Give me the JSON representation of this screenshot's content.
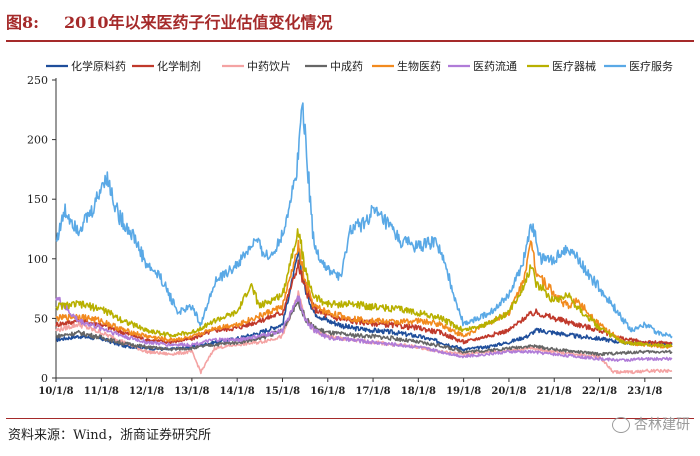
{
  "figure": {
    "label": "图8:",
    "title": "2010年以来医药子行业估值变化情况",
    "source": "资料来源：Wind，浙商证券研究所",
    "watermark": "杏林建研"
  },
  "chart_data": {
    "type": "line",
    "title": "2010年以来医药子行业估值变化情况",
    "xlabel": "",
    "ylabel": "",
    "ylim": [
      0,
      250
    ],
    "yticks": [
      0,
      50,
      100,
      150,
      200,
      250
    ],
    "xticks": [
      "10/1/8",
      "11/1/8",
      "12/1/8",
      "13/1/8",
      "14/1/8",
      "15/1/8",
      "16/1/8",
      "17/1/8",
      "18/1/8",
      "19/1/8",
      "20/1/8",
      "21/1/8",
      "22/1/8",
      "23/1/8"
    ],
    "x_range": [
      2010.0,
      2023.6
    ],
    "legend_position": "top",
    "series": [
      {
        "name": "化学原料药",
        "color": "#1f4e9b",
        "points": [
          [
            2010.0,
            32
          ],
          [
            2010.5,
            35
          ],
          [
            2011.0,
            33
          ],
          [
            2011.5,
            27
          ],
          [
            2012.0,
            25
          ],
          [
            2012.5,
            24
          ],
          [
            2013.0,
            26
          ],
          [
            2013.5,
            30
          ],
          [
            2014.0,
            33
          ],
          [
            2014.5,
            38
          ],
          [
            2015.0,
            45
          ],
          [
            2015.35,
            105
          ],
          [
            2015.5,
            75
          ],
          [
            2015.7,
            55
          ],
          [
            2016.0,
            48
          ],
          [
            2016.5,
            42
          ],
          [
            2017.0,
            40
          ],
          [
            2017.5,
            38
          ],
          [
            2018.0,
            35
          ],
          [
            2018.5,
            30
          ],
          [
            2019.0,
            24
          ],
          [
            2019.5,
            26
          ],
          [
            2020.0,
            30
          ],
          [
            2020.4,
            35
          ],
          [
            2020.6,
            40
          ],
          [
            2021.0,
            38
          ],
          [
            2021.5,
            35
          ],
          [
            2022.0,
            33
          ],
          [
            2022.5,
            30
          ],
          [
            2023.0,
            29
          ],
          [
            2023.6,
            28
          ]
        ]
      },
      {
        "name": "化学制剂",
        "color": "#c0392b",
        "points": [
          [
            2010.0,
            45
          ],
          [
            2010.5,
            48
          ],
          [
            2011.0,
            45
          ],
          [
            2011.5,
            38
          ],
          [
            2012.0,
            32
          ],
          [
            2012.5,
            30
          ],
          [
            2013.0,
            33
          ],
          [
            2013.5,
            40
          ],
          [
            2014.0,
            42
          ],
          [
            2014.5,
            48
          ],
          [
            2015.0,
            55
          ],
          [
            2015.35,
            95
          ],
          [
            2015.5,
            75
          ],
          [
            2015.7,
            58
          ],
          [
            2016.0,
            52
          ],
          [
            2016.5,
            48
          ],
          [
            2017.0,
            46
          ],
          [
            2017.5,
            44
          ],
          [
            2018.0,
            42
          ],
          [
            2018.5,
            38
          ],
          [
            2019.0,
            30
          ],
          [
            2019.5,
            35
          ],
          [
            2020.0,
            40
          ],
          [
            2020.4,
            52
          ],
          [
            2020.6,
            55
          ],
          [
            2021.0,
            50
          ],
          [
            2021.5,
            45
          ],
          [
            2022.0,
            40
          ],
          [
            2022.5,
            33
          ],
          [
            2023.0,
            30
          ],
          [
            2023.6,
            29
          ]
        ]
      },
      {
        "name": "中药饮片",
        "color": "#f4a3a3",
        "points": [
          [
            2010.0,
            40
          ],
          [
            2010.5,
            45
          ],
          [
            2011.0,
            38
          ],
          [
            2011.5,
            30
          ],
          [
            2012.0,
            22
          ],
          [
            2012.5,
            20
          ],
          [
            2013.0,
            22
          ],
          [
            2013.2,
            5
          ],
          [
            2013.5,
            25
          ],
          [
            2014.0,
            28
          ],
          [
            2014.5,
            30
          ],
          [
            2015.0,
            35
          ],
          [
            2015.35,
            70
          ],
          [
            2015.5,
            50
          ],
          [
            2015.7,
            40
          ],
          [
            2016.0,
            35
          ],
          [
            2016.5,
            32
          ],
          [
            2017.0,
            30
          ],
          [
            2017.5,
            28
          ],
          [
            2018.0,
            26
          ],
          [
            2018.5,
            22
          ],
          [
            2019.0,
            20
          ],
          [
            2019.5,
            22
          ],
          [
            2020.0,
            23
          ],
          [
            2020.5,
            25
          ],
          [
            2021.0,
            22
          ],
          [
            2021.5,
            20
          ],
          [
            2022.0,
            18
          ],
          [
            2022.3,
            5
          ],
          [
            2022.8,
            5
          ],
          [
            2023.0,
            6
          ],
          [
            2023.6,
            6
          ]
        ]
      },
      {
        "name": "中成药",
        "color": "#666666",
        "points": [
          [
            2010.0,
            35
          ],
          [
            2010.5,
            38
          ],
          [
            2011.0,
            34
          ],
          [
            2011.5,
            29
          ],
          [
            2012.0,
            26
          ],
          [
            2012.5,
            24
          ],
          [
            2013.0,
            25
          ],
          [
            2013.5,
            28
          ],
          [
            2014.0,
            30
          ],
          [
            2014.5,
            33
          ],
          [
            2015.0,
            40
          ],
          [
            2015.35,
            65
          ],
          [
            2015.5,
            50
          ],
          [
            2015.7,
            42
          ],
          [
            2016.0,
            38
          ],
          [
            2016.5,
            36
          ],
          [
            2017.0,
            35
          ],
          [
            2017.5,
            33
          ],
          [
            2018.0,
            30
          ],
          [
            2018.5,
            27
          ],
          [
            2019.0,
            22
          ],
          [
            2019.5,
            23
          ],
          [
            2020.0,
            25
          ],
          [
            2020.5,
            27
          ],
          [
            2021.0,
            24
          ],
          [
            2021.5,
            22
          ],
          [
            2022.0,
            20
          ],
          [
            2022.5,
            21
          ],
          [
            2023.0,
            22
          ],
          [
            2023.6,
            22
          ]
        ]
      },
      {
        "name": "生物医药",
        "color": "#f28a1e",
        "points": [
          [
            2010.0,
            50
          ],
          [
            2010.5,
            52
          ],
          [
            2011.0,
            48
          ],
          [
            2011.5,
            40
          ],
          [
            2012.0,
            35
          ],
          [
            2012.5,
            32
          ],
          [
            2013.0,
            34
          ],
          [
            2013.5,
            42
          ],
          [
            2014.0,
            45
          ],
          [
            2014.5,
            52
          ],
          [
            2015.0,
            60
          ],
          [
            2015.35,
            110
          ],
          [
            2015.5,
            80
          ],
          [
            2015.7,
            60
          ],
          [
            2016.0,
            55
          ],
          [
            2016.5,
            50
          ],
          [
            2017.0,
            48
          ],
          [
            2017.5,
            47
          ],
          [
            2018.0,
            48
          ],
          [
            2018.5,
            45
          ],
          [
            2019.0,
            35
          ],
          [
            2019.5,
            45
          ],
          [
            2020.0,
            55
          ],
          [
            2020.3,
            80
          ],
          [
            2020.5,
            115
          ],
          [
            2020.6,
            90
          ],
          [
            2021.0,
            70
          ],
          [
            2021.3,
            60
          ],
          [
            2021.5,
            65
          ],
          [
            2022.0,
            45
          ],
          [
            2022.5,
            30
          ],
          [
            2023.0,
            28
          ],
          [
            2023.6,
            26
          ]
        ]
      },
      {
        "name": "医药流通",
        "color": "#b07cd8",
        "points": [
          [
            2010.0,
            68
          ],
          [
            2010.3,
            55
          ],
          [
            2010.5,
            48
          ],
          [
            2011.0,
            42
          ],
          [
            2011.5,
            35
          ],
          [
            2012.0,
            30
          ],
          [
            2012.5,
            28
          ],
          [
            2013.0,
            28
          ],
          [
            2013.5,
            32
          ],
          [
            2014.0,
            32
          ],
          [
            2014.5,
            35
          ],
          [
            2015.0,
            40
          ],
          [
            2015.35,
            68
          ],
          [
            2015.5,
            50
          ],
          [
            2015.7,
            40
          ],
          [
            2016.0,
            34
          ],
          [
            2016.5,
            32
          ],
          [
            2017.0,
            30
          ],
          [
            2017.5,
            28
          ],
          [
            2018.0,
            26
          ],
          [
            2018.5,
            22
          ],
          [
            2019.0,
            18
          ],
          [
            2019.5,
            20
          ],
          [
            2020.0,
            22
          ],
          [
            2020.5,
            22
          ],
          [
            2021.0,
            20
          ],
          [
            2021.5,
            18
          ],
          [
            2022.0,
            16
          ],
          [
            2022.5,
            15
          ],
          [
            2023.0,
            16
          ],
          [
            2023.6,
            16
          ]
        ]
      },
      {
        "name": "医疗器械",
        "color": "#b8b000",
        "points": [
          [
            2010.0,
            60
          ],
          [
            2010.5,
            62
          ],
          [
            2011.0,
            58
          ],
          [
            2011.5,
            48
          ],
          [
            2012.0,
            40
          ],
          [
            2012.5,
            36
          ],
          [
            2013.0,
            38
          ],
          [
            2013.5,
            48
          ],
          [
            2014.0,
            55
          ],
          [
            2014.3,
            78
          ],
          [
            2014.5,
            60
          ],
          [
            2015.0,
            70
          ],
          [
            2015.35,
            125
          ],
          [
            2015.5,
            90
          ],
          [
            2015.7,
            68
          ],
          [
            2016.0,
            62
          ],
          [
            2016.5,
            62
          ],
          [
            2017.0,
            60
          ],
          [
            2017.5,
            58
          ],
          [
            2018.0,
            55
          ],
          [
            2018.5,
            50
          ],
          [
            2019.0,
            40
          ],
          [
            2019.5,
            45
          ],
          [
            2020.0,
            55
          ],
          [
            2020.3,
            75
          ],
          [
            2020.5,
            95
          ],
          [
            2020.6,
            80
          ],
          [
            2021.0,
            65
          ],
          [
            2021.3,
            70
          ],
          [
            2021.5,
            60
          ],
          [
            2022.0,
            42
          ],
          [
            2022.5,
            30
          ],
          [
            2023.0,
            28
          ],
          [
            2023.6,
            27
          ]
        ]
      },
      {
        "name": "医疗服务",
        "color": "#5aa9e6",
        "points": [
          [
            2010.0,
            115
          ],
          [
            2010.2,
            140
          ],
          [
            2010.5,
            125
          ],
          [
            2010.8,
            140
          ],
          [
            2011.1,
            170
          ],
          [
            2011.4,
            135
          ],
          [
            2011.7,
            120
          ],
          [
            2012.0,
            95
          ],
          [
            2012.3,
            85
          ],
          [
            2012.7,
            55
          ],
          [
            2013.0,
            60
          ],
          [
            2013.2,
            45
          ],
          [
            2013.5,
            80
          ],
          [
            2014.0,
            95
          ],
          [
            2014.4,
            115
          ],
          [
            2014.7,
            100
          ],
          [
            2015.0,
            120
          ],
          [
            2015.3,
            170
          ],
          [
            2015.45,
            233
          ],
          [
            2015.55,
            180
          ],
          [
            2015.7,
            110
          ],
          [
            2016.0,
            90
          ],
          [
            2016.3,
            85
          ],
          [
            2016.5,
            125
          ],
          [
            2016.8,
            130
          ],
          [
            2017.0,
            140
          ],
          [
            2017.3,
            130
          ],
          [
            2017.6,
            115
          ],
          [
            2018.0,
            110
          ],
          [
            2018.4,
            115
          ],
          [
            2018.7,
            80
          ],
          [
            2019.0,
            45
          ],
          [
            2019.3,
            50
          ],
          [
            2019.6,
            55
          ],
          [
            2020.0,
            70
          ],
          [
            2020.3,
            95
          ],
          [
            2020.5,
            130
          ],
          [
            2020.7,
            100
          ],
          [
            2021.0,
            100
          ],
          [
            2021.3,
            110
          ],
          [
            2021.6,
            95
          ],
          [
            2022.0,
            75
          ],
          [
            2022.4,
            55
          ],
          [
            2022.7,
            40
          ],
          [
            2023.0,
            45
          ],
          [
            2023.3,
            38
          ],
          [
            2023.6,
            35
          ]
        ]
      }
    ]
  }
}
